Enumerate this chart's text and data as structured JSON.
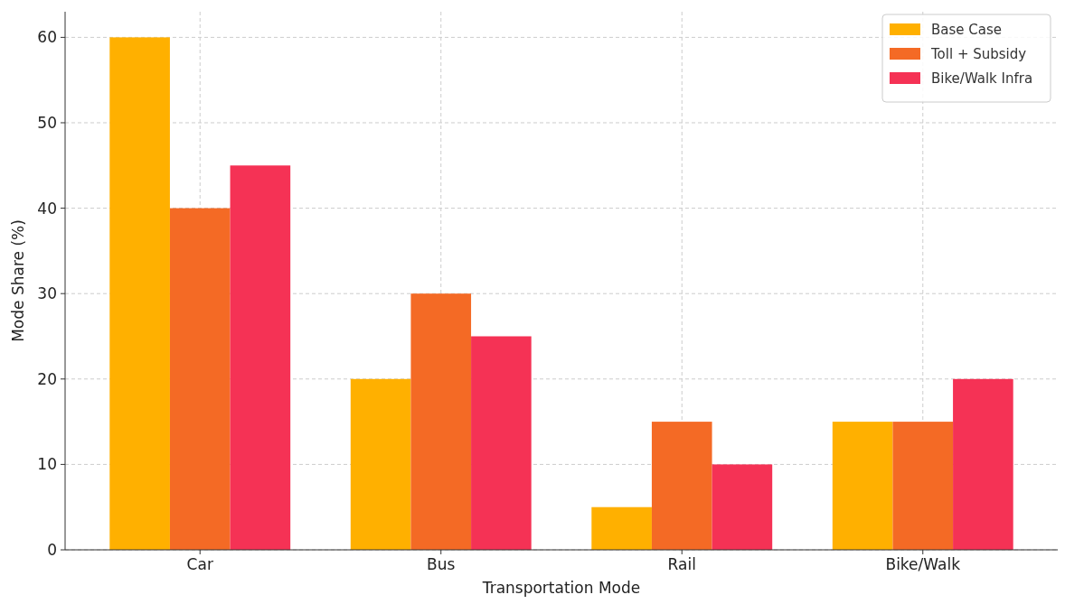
{
  "chart_data": {
    "type": "bar",
    "xlabel": "Transportation Mode",
    "ylabel": "Mode Share (%)",
    "categories": [
      "Car",
      "Bus",
      "Rail",
      "Bike/Walk"
    ],
    "series": [
      {
        "name": "Base Case",
        "color": "#ffb000",
        "values": [
          60,
          20,
          5,
          15
        ]
      },
      {
        "name": "Toll + Subsidy",
        "color": "#f46a25",
        "values": [
          40,
          30,
          15,
          15
        ]
      },
      {
        "name": "Bike/Walk Infra",
        "color": "#f53255",
        "values": [
          45,
          25,
          10,
          20
        ]
      }
    ],
    "ylim": [
      0,
      63
    ],
    "yticks": [
      0,
      10,
      20,
      30,
      40,
      50,
      60
    ],
    "grid": true,
    "legend": "top right"
  }
}
